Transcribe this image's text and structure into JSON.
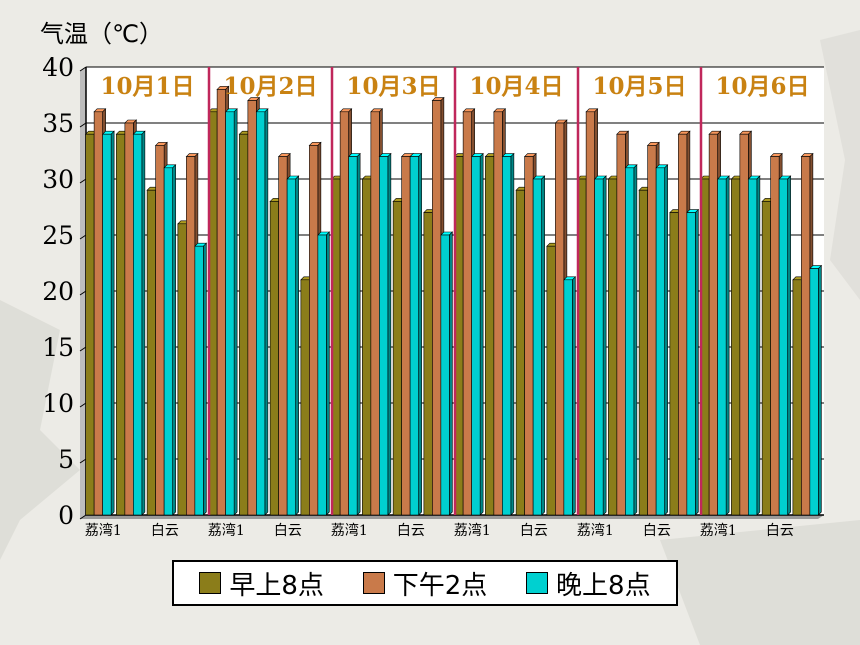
{
  "chart_data": {
    "type": "bar",
    "ylabel": "气温（℃）",
    "ylim": [
      0,
      40
    ],
    "yticks": [
      0,
      5,
      10,
      15,
      20,
      25,
      30,
      35,
      40
    ],
    "grid": true,
    "legend_position": "bottom",
    "days": [
      "10月1日",
      "10月2日",
      "10月3日",
      "10月4日",
      "10月5日",
      "10月6日"
    ],
    "group_labels": [
      "荔湾1",
      "",
      "白云",
      ""
    ],
    "series": [
      {
        "name": "早上8点",
        "color": "#8b7d1a",
        "values": [
          34,
          34,
          29,
          26,
          36,
          34,
          28,
          21,
          30,
          30,
          28,
          27,
          32,
          32,
          29,
          24,
          30,
          30,
          29,
          27,
          30,
          30,
          28,
          21
        ]
      },
      {
        "name": "下午2点",
        "color": "#c97a4a",
        "values": [
          36,
          35,
          33,
          32,
          38,
          37,
          32,
          33,
          36,
          36,
          32,
          37,
          36,
          36,
          32,
          35,
          36,
          34,
          33,
          34,
          34,
          34,
          32,
          32
        ]
      },
      {
        "name": "晚上8点",
        "color": "#00d0d0",
        "values": [
          34,
          34,
          31,
          24,
          36,
          36,
          30,
          25,
          32,
          32,
          32,
          25,
          32,
          32,
          30,
          21,
          30,
          31,
          31,
          27,
          30,
          30,
          30,
          22
        ]
      }
    ]
  }
}
